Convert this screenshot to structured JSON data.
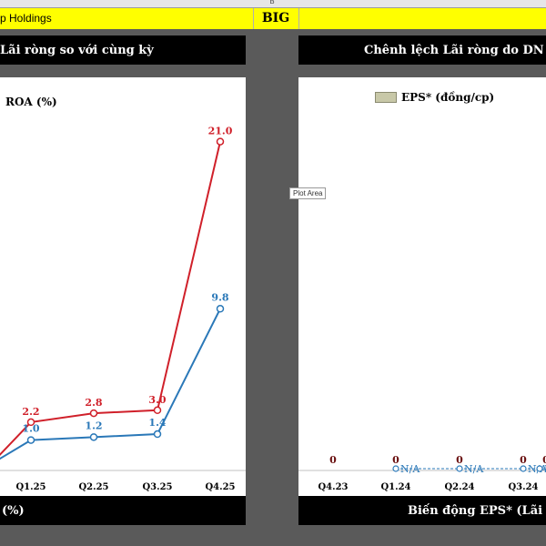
{
  "sheet": {
    "column_label": "B",
    "company_name": "p Holdings",
    "ticker": "BIG"
  },
  "left_panel": {
    "header": "Lãi ròng so với cùng kỳ",
    "footer": "(%)"
  },
  "right_panel": {
    "header": "Chênh lệch Lãi ròng do DN tự",
    "footer": "Biến động EPS* (Lãi ròn"
  },
  "tooltip": "Plot Area",
  "colors": {
    "red_series": "#d0202a",
    "blue_series": "#2a78b8",
    "legend_swatch": "#c8c8a8"
  },
  "chart_data": [
    {
      "type": "line",
      "title": "ROA (%)",
      "categories": [
        "",
        "Q1.25",
        "Q2.25",
        "Q3.25",
        "Q4.25"
      ],
      "series": [
        {
          "color": "red",
          "values": [
            null,
            2.2,
            2.8,
            3.0,
            21.0
          ]
        },
        {
          "color": "blue",
          "values": [
            null,
            1.0,
            1.2,
            1.4,
            9.8
          ]
        }
      ],
      "grid": false
    },
    {
      "type": "bar",
      "legend": [
        "EPS* (đồng/cp)"
      ],
      "legend_position": "top",
      "categories": [
        "Q4.23",
        "Q1.24",
        "Q2.24",
        "Q3.24",
        ""
      ],
      "values": [
        0,
        0,
        0,
        0,
        0
      ],
      "labels": [
        "0",
        "0",
        "0",
        "0",
        "0"
      ],
      "na_labels": [
        "N/A",
        "N/A",
        "N/A",
        "N/A"
      ]
    }
  ]
}
